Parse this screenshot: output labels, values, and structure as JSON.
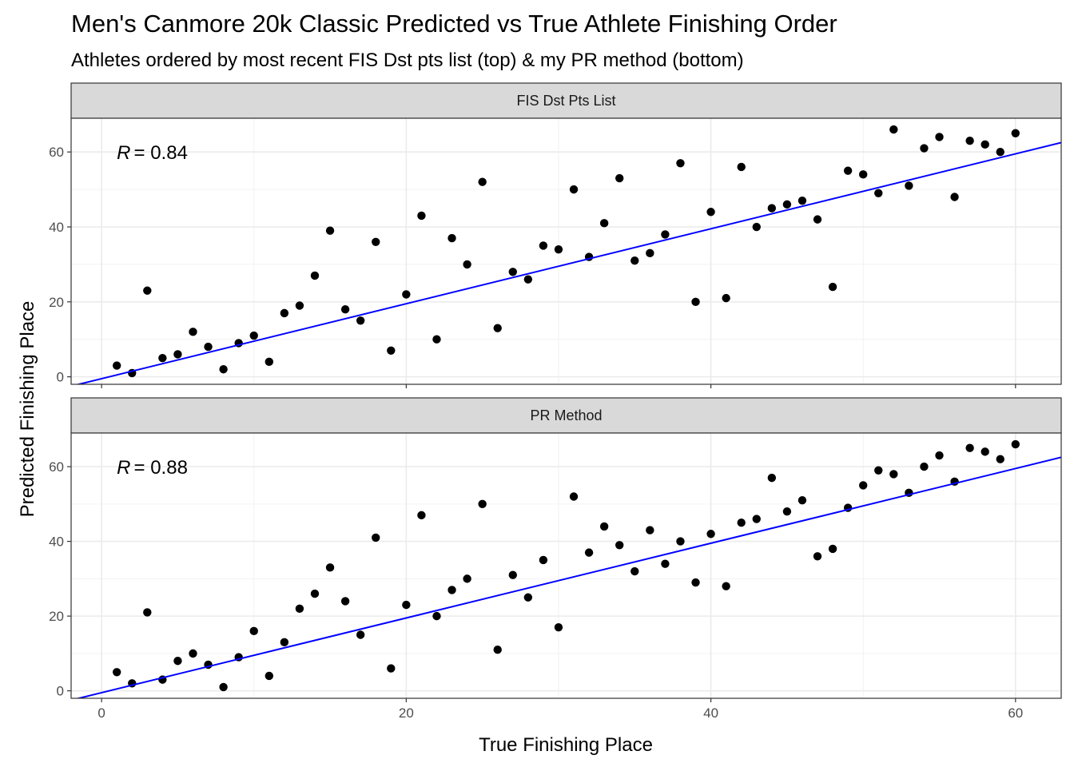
{
  "chart_data": {
    "type": "scatter",
    "title": "Men's Canmore 20k Classic Predicted vs True Athlete Finishing Order",
    "subtitle": "Athletes ordered by most recent FIS Dst pts list (top) & my PR method (bottom)",
    "xlabel": "True Finishing Place",
    "ylabel": "Predicted Finishing Place",
    "xlim": [
      -2,
      63
    ],
    "ylim": [
      -2,
      69
    ],
    "x_ticks": [
      0,
      20,
      40,
      60
    ],
    "y_ticks": [
      0,
      20,
      40,
      60
    ],
    "grid": true,
    "fit_line_color": "#0000ff",
    "point_color": "#000000",
    "panels": [
      {
        "strip_label": "FIS Dst Pts List",
        "r_label": "R",
        "r_value": "= 0.84",
        "fit_line": {
          "intercept": -0.5,
          "slope": 1.0
        },
        "points": [
          {
            "x": 1,
            "y": 3
          },
          {
            "x": 2,
            "y": 1
          },
          {
            "x": 3,
            "y": 23
          },
          {
            "x": 4,
            "y": 5
          },
          {
            "x": 5,
            "y": 6
          },
          {
            "x": 6,
            "y": 12
          },
          {
            "x": 7,
            "y": 8
          },
          {
            "x": 8,
            "y": 2
          },
          {
            "x": 9,
            "y": 9
          },
          {
            "x": 10,
            "y": 11
          },
          {
            "x": 11,
            "y": 4
          },
          {
            "x": 12,
            "y": 17
          },
          {
            "x": 13,
            "y": 19
          },
          {
            "x": 14,
            "y": 27
          },
          {
            "x": 15,
            "y": 39
          },
          {
            "x": 16,
            "y": 18
          },
          {
            "x": 17,
            "y": 15
          },
          {
            "x": 18,
            "y": 36
          },
          {
            "x": 19,
            "y": 7
          },
          {
            "x": 20,
            "y": 22
          },
          {
            "x": 21,
            "y": 43
          },
          {
            "x": 22,
            "y": 10
          },
          {
            "x": 23,
            "y": 37
          },
          {
            "x": 24,
            "y": 30
          },
          {
            "x": 25,
            "y": 52
          },
          {
            "x": 26,
            "y": 13
          },
          {
            "x": 27,
            "y": 28
          },
          {
            "x": 28,
            "y": 26
          },
          {
            "x": 29,
            "y": 35
          },
          {
            "x": 30,
            "y": 34
          },
          {
            "x": 31,
            "y": 50
          },
          {
            "x": 32,
            "y": 32
          },
          {
            "x": 33,
            "y": 41
          },
          {
            "x": 34,
            "y": 53
          },
          {
            "x": 35,
            "y": 31
          },
          {
            "x": 36,
            "y": 33
          },
          {
            "x": 37,
            "y": 38
          },
          {
            "x": 38,
            "y": 57
          },
          {
            "x": 39,
            "y": 20
          },
          {
            "x": 40,
            "y": 44
          },
          {
            "x": 41,
            "y": 21
          },
          {
            "x": 42,
            "y": 56
          },
          {
            "x": 43,
            "y": 40
          },
          {
            "x": 44,
            "y": 45
          },
          {
            "x": 45,
            "y": 46
          },
          {
            "x": 46,
            "y": 47
          },
          {
            "x": 47,
            "y": 42
          },
          {
            "x": 48,
            "y": 24
          },
          {
            "x": 49,
            "y": 55
          },
          {
            "x": 50,
            "y": 54
          },
          {
            "x": 51,
            "y": 49
          },
          {
            "x": 52,
            "y": 66
          },
          {
            "x": 53,
            "y": 51
          },
          {
            "x": 54,
            "y": 61
          },
          {
            "x": 55,
            "y": 64
          },
          {
            "x": 56,
            "y": 48
          },
          {
            "x": 57,
            "y": 63
          },
          {
            "x": 58,
            "y": 62
          },
          {
            "x": 59,
            "y": 60
          },
          {
            "x": 60,
            "y": 65
          }
        ]
      },
      {
        "strip_label": "PR Method",
        "r_label": "R",
        "r_value": "= 0.88",
        "fit_line": {
          "intercept": -0.5,
          "slope": 1.0
        },
        "points": [
          {
            "x": 1,
            "y": 5
          },
          {
            "x": 2,
            "y": 2
          },
          {
            "x": 3,
            "y": 21
          },
          {
            "x": 4,
            "y": 3
          },
          {
            "x": 5,
            "y": 8
          },
          {
            "x": 6,
            "y": 10
          },
          {
            "x": 7,
            "y": 7
          },
          {
            "x": 8,
            "y": 1
          },
          {
            "x": 9,
            "y": 9
          },
          {
            "x": 10,
            "y": 16
          },
          {
            "x": 11,
            "y": 4
          },
          {
            "x": 12,
            "y": 13
          },
          {
            "x": 13,
            "y": 22
          },
          {
            "x": 14,
            "y": 26
          },
          {
            "x": 15,
            "y": 33
          },
          {
            "x": 16,
            "y": 24
          },
          {
            "x": 17,
            "y": 15
          },
          {
            "x": 18,
            "y": 41
          },
          {
            "x": 19,
            "y": 6
          },
          {
            "x": 20,
            "y": 23
          },
          {
            "x": 21,
            "y": 47
          },
          {
            "x": 22,
            "y": 20
          },
          {
            "x": 23,
            "y": 27
          },
          {
            "x": 24,
            "y": 30
          },
          {
            "x": 25,
            "y": 50
          },
          {
            "x": 26,
            "y": 11
          },
          {
            "x": 27,
            "y": 31
          },
          {
            "x": 28,
            "y": 25
          },
          {
            "x": 29,
            "y": 35
          },
          {
            "x": 30,
            "y": 17
          },
          {
            "x": 31,
            "y": 52
          },
          {
            "x": 32,
            "y": 37
          },
          {
            "x": 33,
            "y": 44
          },
          {
            "x": 34,
            "y": 39
          },
          {
            "x": 35,
            "y": 32
          },
          {
            "x": 36,
            "y": 43
          },
          {
            "x": 37,
            "y": 34
          },
          {
            "x": 38,
            "y": 40
          },
          {
            "x": 39,
            "y": 29
          },
          {
            "x": 40,
            "y": 42
          },
          {
            "x": 41,
            "y": 28
          },
          {
            "x": 42,
            "y": 45
          },
          {
            "x": 43,
            "y": 46
          },
          {
            "x": 44,
            "y": 57
          },
          {
            "x": 45,
            "y": 48
          },
          {
            "x": 46,
            "y": 51
          },
          {
            "x": 47,
            "y": 36
          },
          {
            "x": 48,
            "y": 38
          },
          {
            "x": 49,
            "y": 49
          },
          {
            "x": 50,
            "y": 55
          },
          {
            "x": 51,
            "y": 59
          },
          {
            "x": 52,
            "y": 58
          },
          {
            "x": 53,
            "y": 53
          },
          {
            "x": 54,
            "y": 60
          },
          {
            "x": 55,
            "y": 63
          },
          {
            "x": 56,
            "y": 56
          },
          {
            "x": 57,
            "y": 65
          },
          {
            "x": 58,
            "y": 64
          },
          {
            "x": 59,
            "y": 62
          },
          {
            "x": 60,
            "y": 66
          }
        ]
      }
    ]
  }
}
